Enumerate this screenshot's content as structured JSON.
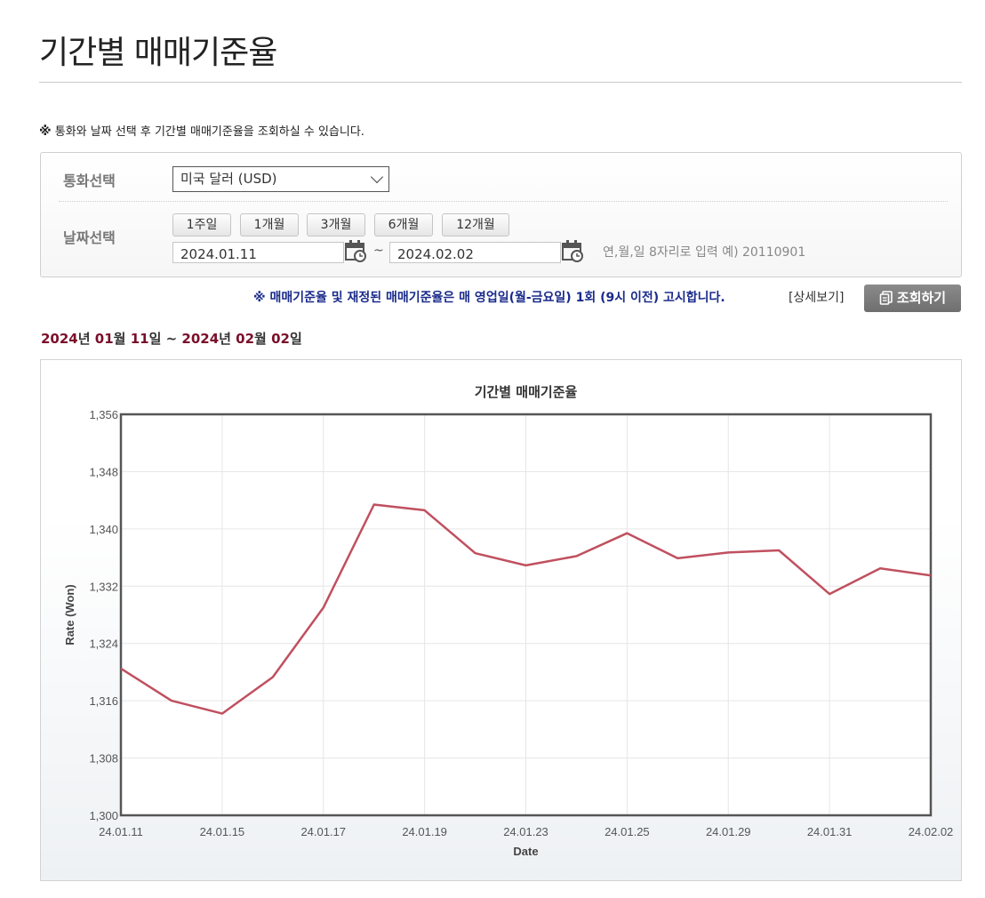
{
  "page": {
    "title": "기간별 매매기준율",
    "notice_mark": "※",
    "notice": "통화와 날짜 선택 후 기간별 매매기준율을 조회하실 수 있습니다."
  },
  "form": {
    "currency_label": "통화선택",
    "currency_selected": "미국 달러 (USD)",
    "date_label": "날짜선택",
    "period_buttons": [
      "1주일",
      "1개월",
      "3개월",
      "6개월",
      "12개월"
    ],
    "start_date": "2024.01.11",
    "end_date": "2024.02.02",
    "tilde": "~",
    "hint": "연,월,일 8자리로 입력 예) 20110901"
  },
  "announce": "※ 매매기준율 및 재정된 매매기준율은 매 영업일(월-금요일) 1회 (9시 이전) 고시합니다.",
  "detail_link": "[상세보기]",
  "search_button": "조회하기",
  "range": {
    "y1": "2024",
    "t1": "년 ",
    "m1": "01",
    "t2": "월 ",
    "d1": "11",
    "t3": "일 ~ ",
    "y2": "2024",
    "t4": "년 ",
    "m2": "02",
    "t5": "월 ",
    "d2": "02",
    "t6": "일"
  },
  "colors": {
    "line": "#c0505f",
    "accent": "#7a0f2a",
    "announce": "#1a2b8a"
  },
  "chart_data": {
    "type": "line",
    "title": "기간별 매매기준율",
    "xlabel": "Date",
    "ylabel": "Rate (Won)",
    "ylim": [
      1300,
      1356
    ],
    "y_ticks": [
      "1,300",
      "1,308",
      "1,316",
      "1,324",
      "1,332",
      "1,340",
      "1,348",
      "1,356"
    ],
    "x_ticks": [
      "24.01.11",
      "24.01.15",
      "24.01.17",
      "24.01.19",
      "24.01.23",
      "24.01.25",
      "24.01.29",
      "24.01.31",
      "24.02.02"
    ],
    "grid": true,
    "series": [
      {
        "x": [
          "24.01.11",
          "24.01.12",
          "24.01.15",
          "24.01.16",
          "24.01.17",
          "24.01.18",
          "24.01.19",
          "24.01.22",
          "24.01.23",
          "24.01.24",
          "24.01.25",
          "24.01.26",
          "24.01.29",
          "24.01.30",
          "24.01.31",
          "24.02.01",
          "24.02.02"
        ],
        "values": [
          1320.5,
          1316.0,
          1314.2,
          1319.3,
          1329.0,
          1343.4,
          1342.6,
          1336.6,
          1334.9,
          1336.2,
          1339.4,
          1335.9,
          1336.7,
          1337.0,
          1330.9,
          1334.5,
          1333.5
        ]
      }
    ]
  }
}
